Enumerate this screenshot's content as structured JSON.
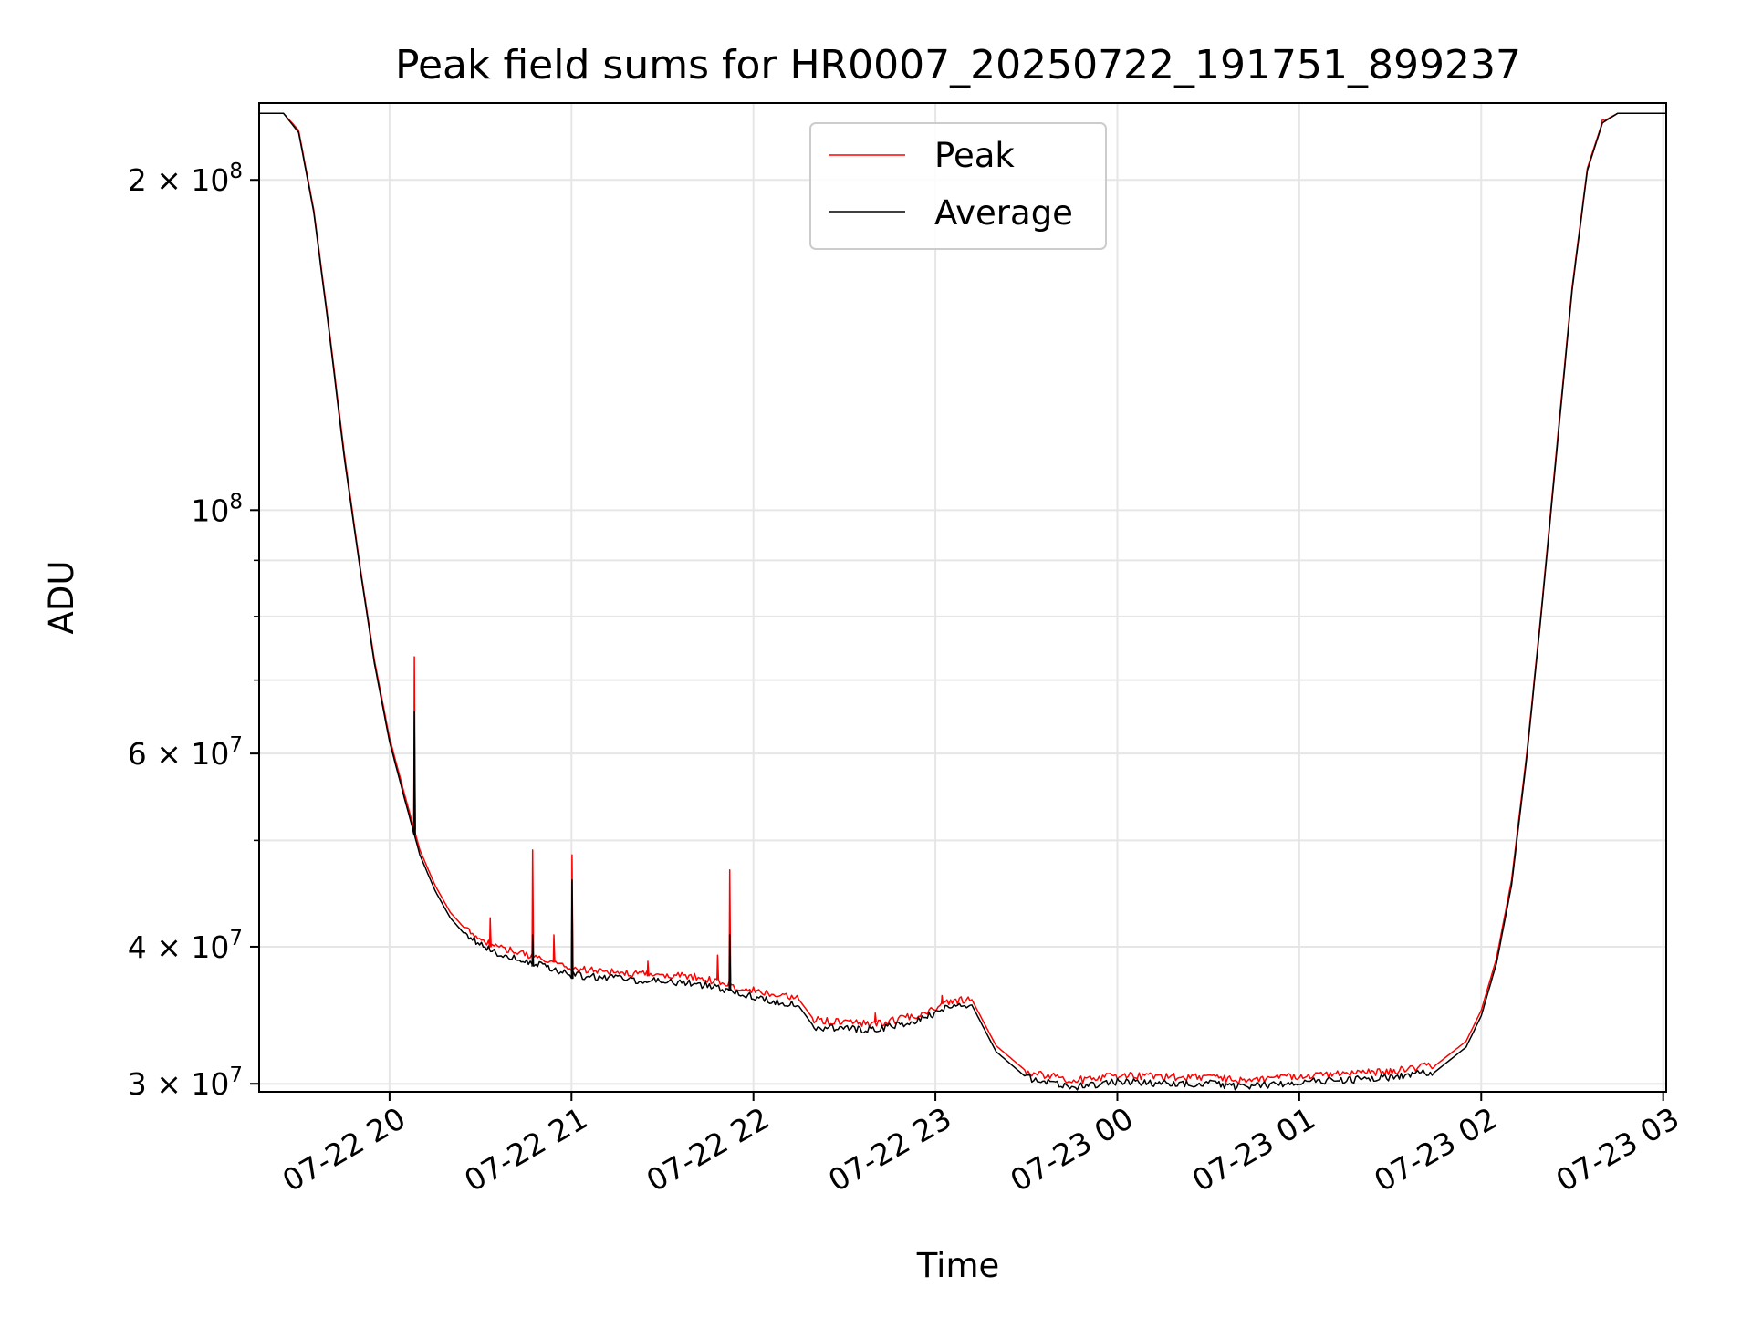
{
  "chart_data": {
    "type": "line",
    "title": "Peak field sums for HR0007_20250722_191751_899237",
    "xlabel": "Time",
    "ylabel": "ADU",
    "yscale": "log",
    "ylim": [
      29500000,
      235000000
    ],
    "xlim": [
      "07-22 19:17:51",
      "07-23 03:01:00"
    ],
    "grid": true,
    "legend_position": "upper center",
    "x_ticks": [
      {
        "label": "07-22 20",
        "time": "07-22 20:00"
      },
      {
        "label": "07-22 21",
        "time": "07-22 21:00"
      },
      {
        "label": "07-22 22",
        "time": "07-22 22:00"
      },
      {
        "label": "07-22 23",
        "time": "07-22 23:00"
      },
      {
        "label": "07-23 00",
        "time": "07-23 00:00"
      },
      {
        "label": "07-23 01",
        "time": "07-23 01:00"
      },
      {
        "label": "07-23 02",
        "time": "07-23 02:00"
      },
      {
        "label": "07-23 03",
        "time": "07-23 03:00"
      }
    ],
    "y_ticks": [
      {
        "value": 30000000,
        "mantissa": "3",
        "exp": "7"
      },
      {
        "value": 40000000,
        "mantissa": "4",
        "exp": "7"
      },
      {
        "value": 60000000,
        "mantissa": "6",
        "exp": "7"
      },
      {
        "value": 100000000,
        "mantissa": "",
        "exp": "8"
      },
      {
        "value": 200000000,
        "mantissa": "2",
        "exp": "8"
      }
    ],
    "y_minor_ticks": [
      50000000,
      70000000,
      80000000,
      90000000
    ],
    "series": [
      {
        "name": "Peak",
        "color": "#ff0000",
        "points": [
          [
            "07-22 19:17",
            230000000
          ],
          [
            "07-22 19:25",
            230000000
          ],
          [
            "07-22 19:30",
            222000000
          ],
          [
            "07-22 19:35",
            188000000
          ],
          [
            "07-22 19:40",
            147000000
          ],
          [
            "07-22 19:45",
            113000000
          ],
          [
            "07-22 19:50",
            90000000
          ],
          [
            "07-22 19:55",
            73000000
          ],
          [
            "07-22 20:00",
            62000000
          ],
          [
            "07-22 20:05",
            55000000
          ],
          [
            "07-22 20:10",
            49000000
          ],
          [
            "07-22 20:15",
            45500000
          ],
          [
            "07-22 20:20",
            43000000
          ],
          [
            "07-22 20:25",
            41500000
          ],
          [
            "07-22 20:35",
            40000000
          ],
          [
            "07-22 20:50",
            39000000
          ],
          [
            "07-22 21:00",
            38200000
          ],
          [
            "07-22 21:20",
            37800000
          ],
          [
            "07-22 21:40",
            37600000
          ],
          [
            "07-22 22:00",
            36500000
          ],
          [
            "07-22 22:15",
            35800000
          ],
          [
            "07-22 22:20",
            34300000
          ],
          [
            "07-22 22:40",
            34000000
          ],
          [
            "07-22 22:55",
            34700000
          ],
          [
            "07-22 23:05",
            35700000
          ],
          [
            "07-22 23:12",
            35800000
          ],
          [
            "07-22 23:20",
            32500000
          ],
          [
            "07-22 23:30",
            30800000
          ],
          [
            "07-22 23:45",
            30200000
          ],
          [
            "07-23 00:00",
            30500000
          ],
          [
            "07-23 00:30",
            30400000
          ],
          [
            "07-23 00:40",
            30200000
          ],
          [
            "07-23 01:00",
            30500000
          ],
          [
            "07-23 01:30",
            30800000
          ],
          [
            "07-23 01:45",
            31200000
          ],
          [
            "07-23 01:55",
            32800000
          ],
          [
            "07-23 02:00",
            35000000
          ],
          [
            "07-23 02:05",
            39000000
          ],
          [
            "07-23 02:10",
            46000000
          ],
          [
            "07-23 02:15",
            60000000
          ],
          [
            "07-23 02:20",
            82000000
          ],
          [
            "07-23 02:25",
            115000000
          ],
          [
            "07-23 02:30",
            160000000
          ],
          [
            "07-23 02:35",
            205000000
          ],
          [
            "07-23 02:40",
            226000000
          ],
          [
            "07-23 02:45",
            230000000
          ],
          [
            "07-23 03:01",
            230000000
          ]
        ],
        "spikes": [
          [
            "07-22 20:08",
            73500000
          ],
          [
            "07-22 20:33",
            42500000
          ],
          [
            "07-22 20:47",
            49000000
          ],
          [
            "07-22 20:54",
            41000000
          ],
          [
            "07-22 21:00",
            48500000
          ],
          [
            "07-22 21:25",
            38800000
          ],
          [
            "07-22 21:48",
            39300000
          ],
          [
            "07-22 21:52",
            47000000
          ],
          [
            "07-22 22:40",
            34800000
          ],
          [
            "07-22 23:02",
            36100000
          ]
        ]
      },
      {
        "name": "Average",
        "color": "#000000",
        "points": [
          [
            "07-22 19:17",
            230000000
          ],
          [
            "07-22 19:25",
            230000000
          ],
          [
            "07-22 19:30",
            221000000
          ],
          [
            "07-22 19:35",
            187000000
          ],
          [
            "07-22 19:40",
            146000000
          ],
          [
            "07-22 19:45",
            112000000
          ],
          [
            "07-22 19:50",
            89500000
          ],
          [
            "07-22 19:55",
            72500000
          ],
          [
            "07-22 20:00",
            61500000
          ],
          [
            "07-22 20:05",
            54500000
          ],
          [
            "07-22 20:10",
            48500000
          ],
          [
            "07-22 20:15",
            45000000
          ],
          [
            "07-22 20:20",
            42500000
          ],
          [
            "07-22 20:25",
            41000000
          ],
          [
            "07-22 20:35",
            39500000
          ],
          [
            "07-22 20:50",
            38500000
          ],
          [
            "07-22 21:00",
            37700000
          ],
          [
            "07-22 21:20",
            37300000
          ],
          [
            "07-22 21:40",
            37100000
          ],
          [
            "07-22 22:00",
            36000000
          ],
          [
            "07-22 22:15",
            35300000
          ],
          [
            "07-22 22:20",
            33800000
          ],
          [
            "07-22 22:40",
            33600000
          ],
          [
            "07-22 22:55",
            34300000
          ],
          [
            "07-22 23:05",
            35300000
          ],
          [
            "07-22 23:12",
            35400000
          ],
          [
            "07-22 23:20",
            32100000
          ],
          [
            "07-22 23:30",
            30400000
          ],
          [
            "07-22 23:45",
            29800000
          ],
          [
            "07-23 00:00",
            30100000
          ],
          [
            "07-23 00:30",
            30000000
          ],
          [
            "07-23 00:40",
            29800000
          ],
          [
            "07-23 01:00",
            30100000
          ],
          [
            "07-23 01:30",
            30400000
          ],
          [
            "07-23 01:45",
            30800000
          ],
          [
            "07-23 01:55",
            32400000
          ],
          [
            "07-23 02:00",
            34600000
          ],
          [
            "07-23 02:05",
            38600000
          ],
          [
            "07-23 02:10",
            45500000
          ],
          [
            "07-23 02:15",
            59500000
          ],
          [
            "07-23 02:20",
            81500000
          ],
          [
            "07-23 02:25",
            114000000
          ],
          [
            "07-23 02:30",
            159000000
          ],
          [
            "07-23 02:35",
            204000000
          ],
          [
            "07-23 02:40",
            225500000
          ],
          [
            "07-23 02:45",
            230000000
          ],
          [
            "07-23 03:01",
            230000000
          ]
        ],
        "spikes": [
          [
            "07-22 20:08",
            65500000
          ],
          [
            "07-22 20:47",
            41000000
          ],
          [
            "07-22 21:00",
            46000000
          ],
          [
            "07-22 21:52",
            41000000
          ]
        ]
      }
    ]
  }
}
